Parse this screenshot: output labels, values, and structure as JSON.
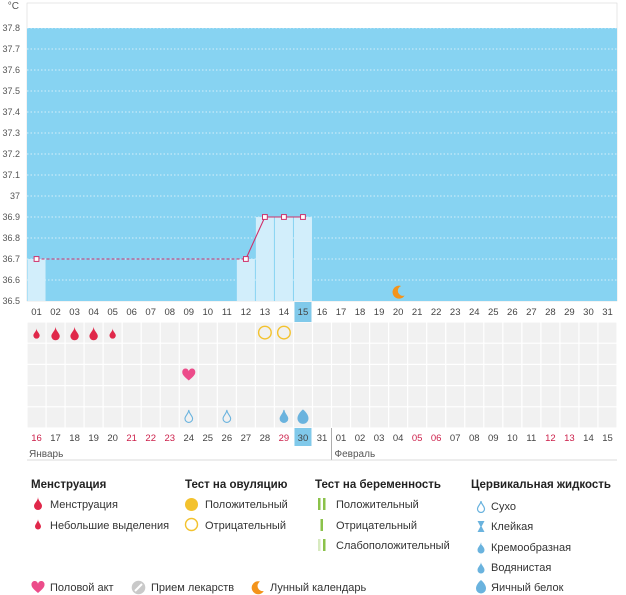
{
  "colors": {
    "chart_bg": "#87d3f2",
    "column_fill": "#d2eefb",
    "temp_line": "#d0306a",
    "blood": "#e0284a",
    "heart": "#ec4c8a",
    "ovulation": "#f3c22e",
    "pregnancy": "#8bc24a",
    "fluid": "#6ab3de",
    "moon": "#f3941b",
    "weekend_text": "#cc1f4a",
    "today_box": "#80c9ea",
    "grid_cell": "#f1f1f1"
  },
  "chart_data": {
    "type": "line",
    "unit_label": "°C",
    "y_ticks": [
      "36.5",
      "36.6",
      "36.7",
      "36.8",
      "36.9",
      "37",
      "37.1",
      "37.2",
      "37.3",
      "37.4",
      "37.5",
      "37.6",
      "37.7",
      "37.8"
    ],
    "ylim": [
      36.5,
      37.8
    ],
    "cycle_days": [
      "01",
      "02",
      "03",
      "04",
      "05",
      "06",
      "07",
      "08",
      "09",
      "10",
      "11",
      "12",
      "13",
      "14",
      "15",
      "16",
      "17",
      "18",
      "19",
      "20",
      "21",
      "22",
      "23",
      "24",
      "25",
      "26",
      "27",
      "28",
      "29",
      "30",
      "31"
    ],
    "today_cycle_day": "15",
    "temperature_points": [
      {
        "day": 1,
        "value": 36.7
      },
      {
        "day": 12,
        "value": 36.7
      },
      {
        "day": 13,
        "value": 36.9
      },
      {
        "day": 14,
        "value": 36.9
      },
      {
        "day": 15,
        "value": 36.9
      }
    ],
    "cover_line": 36.7,
    "lunar_day": 20,
    "calendar_days": [
      {
        "d": "16",
        "red": true
      },
      {
        "d": "17"
      },
      {
        "d": "18"
      },
      {
        "d": "19"
      },
      {
        "d": "20"
      },
      {
        "d": "21",
        "red": true
      },
      {
        "d": "22",
        "red": true
      },
      {
        "d": "23",
        "red": true
      },
      {
        "d": "24"
      },
      {
        "d": "25"
      },
      {
        "d": "26"
      },
      {
        "d": "27"
      },
      {
        "d": "28"
      },
      {
        "d": "29",
        "red": true
      },
      {
        "d": "30",
        "today": true
      },
      {
        "d": "31"
      },
      {
        "d": "01"
      },
      {
        "d": "02"
      },
      {
        "d": "03"
      },
      {
        "d": "04"
      },
      {
        "d": "05",
        "red": true
      },
      {
        "d": "06",
        "red": true
      },
      {
        "d": "07"
      },
      {
        "d": "08"
      },
      {
        "d": "09"
      },
      {
        "d": "10"
      },
      {
        "d": "11"
      },
      {
        "d": "12",
        "red": true
      },
      {
        "d": "13",
        "red": true
      },
      {
        "d": "14"
      },
      {
        "d": "15"
      }
    ],
    "months": [
      {
        "label": "Январь",
        "start_day": 1
      },
      {
        "label": "Февраль",
        "start_day": 17
      }
    ],
    "menstruation": [
      {
        "day": 1,
        "kind": "light"
      },
      {
        "day": 2,
        "kind": "heavy"
      },
      {
        "day": 3,
        "kind": "heavy"
      },
      {
        "day": 4,
        "kind": "heavy"
      },
      {
        "day": 5,
        "kind": "light"
      }
    ],
    "ovulation_tests": [
      {
        "day": 13,
        "kind": "negative"
      },
      {
        "day": 14,
        "kind": "negative"
      }
    ],
    "intercourse_days": [
      9
    ],
    "cervical_fluid": [
      {
        "day": 9,
        "kind": "dry"
      },
      {
        "day": 11,
        "kind": "dry"
      },
      {
        "day": 14,
        "kind": "watery"
      },
      {
        "day": 15,
        "kind": "eggwhite"
      }
    ]
  },
  "legend": {
    "menstruation": {
      "title": "Менструация",
      "items": [
        {
          "label": "Менструация",
          "icon": "blood-drop-heavy"
        },
        {
          "label": "Небольшие выделения",
          "icon": "blood-drop-light"
        }
      ]
    },
    "ovulation": {
      "title": "Тест на овуляцию",
      "items": [
        {
          "label": "Положительный",
          "icon": "ovulation-positive"
        },
        {
          "label": "Отрицательный",
          "icon": "ovulation-negative"
        }
      ]
    },
    "pregnancy": {
      "title": "Тест на беременность",
      "items": [
        {
          "label": "Положительный",
          "icon": "pregnancy-positive"
        },
        {
          "label": "Отрицательный",
          "icon": "pregnancy-negative"
        },
        {
          "label": "Слабоположительный",
          "icon": "pregnancy-faint"
        }
      ]
    },
    "cervical": {
      "title": "Цервикальная жидкость",
      "items": [
        {
          "label": "Сухо",
          "icon": "fluid-dry"
        },
        {
          "label": "Клейкая",
          "icon": "fluid-sticky"
        },
        {
          "label": "Кремообразная",
          "icon": "fluid-creamy"
        },
        {
          "label": "Водянистая",
          "icon": "fluid-watery"
        },
        {
          "label": "Яичный белок",
          "icon": "fluid-eggwhite"
        }
      ]
    },
    "bottom": [
      {
        "label": "Половой акт",
        "icon": "heart-icon"
      },
      {
        "label": "Прием лекарств",
        "icon": "pill-icon"
      },
      {
        "label": "Лунный календарь",
        "icon": "moon-icon"
      }
    ]
  }
}
